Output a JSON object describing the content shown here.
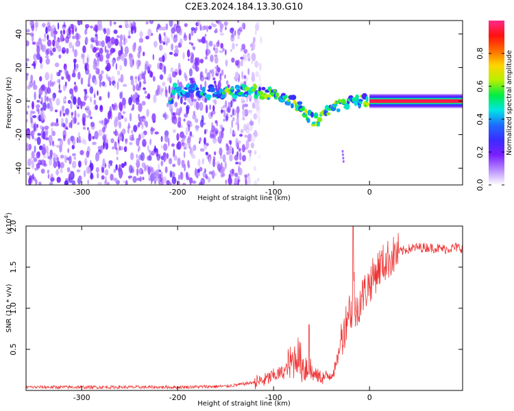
{
  "title": "C2E3.2024.184.13.30.G10",
  "chart_data": [
    {
      "type": "heatmap",
      "xlabel": "Height of straight line (km)",
      "ylabel": "Frequency (Hz)",
      "xlim": [
        -358,
        97
      ],
      "ylim": [
        -50,
        48
      ],
      "xticks": [
        -300,
        -200,
        -100,
        0
      ],
      "yticks": [
        -40,
        -20,
        0,
        20,
        40
      ],
      "colorbar": {
        "label": "Normalized spectral amplitude",
        "range": [
          0,
          1
        ],
        "ticks": [
          "0.0",
          "0.2",
          "0.4",
          "0.6",
          "0.8"
        ],
        "colormap": [
          "#ffffff",
          "#b88cff",
          "#7a1fff",
          "#3a2cff",
          "#1e6bff",
          "#00e5e5",
          "#00ee44",
          "#b6ef00",
          "#ffd500",
          "#ff6a00",
          "#ff1010",
          "#ff2a8c"
        ]
      },
      "features": {
        "noise_region_x": [
          -358,
          -140
        ],
        "signal_track": [
          {
            "x": -205,
            "y": 7
          },
          {
            "x": -180,
            "y": 6
          },
          {
            "x": -155,
            "y": 5
          },
          {
            "x": -120,
            "y": 6
          },
          {
            "x": -100,
            "y": 4
          },
          {
            "x": -80,
            "y": 0
          },
          {
            "x": -65,
            "y": -8
          },
          {
            "x": -57,
            "y": -12
          },
          {
            "x": -45,
            "y": -6
          },
          {
            "x": -30,
            "y": -2
          },
          {
            "x": -15,
            "y": 0
          },
          {
            "x": 0,
            "y": 0
          },
          {
            "x": 97,
            "y": 0
          }
        ],
        "steady_band_x": [
          0,
          97
        ],
        "steady_band_y": 0
      }
    },
    {
      "type": "line",
      "xlabel": "Height of straight line (km)",
      "ylabel": "SNR (10 * v/v)",
      "multiplier_label": "(x10",
      "multiplier_exp": "4",
      "xlim": [
        -358,
        97
      ],
      "ylim": [
        0,
        2.0
      ],
      "xticks": [
        -300,
        -200,
        -100,
        0
      ],
      "yticks": [
        0.5,
        1.0,
        1.5,
        2.0
      ],
      "ytick_labels": [
        "0.5",
        "1.0",
        "1.5",
        "2.0"
      ],
      "color": "#ee3333",
      "series": [
        {
          "x": [
            -358,
            -300,
            -250,
            -200,
            -150,
            -130,
            -110,
            -100,
            -90,
            -85,
            -80,
            -75,
            -70,
            -65,
            -60,
            -55,
            -50,
            -45,
            -40,
            -35,
            -30,
            -25,
            -22,
            -20,
            -18,
            -16,
            -15,
            -10,
            -5,
            0,
            5,
            10,
            15,
            20,
            30,
            40,
            50,
            60,
            70,
            80,
            90,
            97
          ],
          "y": [
            0.04,
            0.04,
            0.04,
            0.04,
            0.05,
            0.08,
            0.12,
            0.18,
            0.22,
            0.28,
            0.35,
            0.45,
            0.3,
            0.28,
            0.2,
            0.18,
            0.16,
            0.16,
            0.2,
            0.28,
            0.6,
            0.8,
            1.0,
            1.0,
            0.9,
            1.3,
            0.9,
            1.1,
            1.2,
            1.3,
            1.4,
            1.5,
            1.55,
            1.6,
            1.68,
            1.72,
            1.74,
            1.74,
            1.73,
            1.72,
            1.74,
            1.73
          ]
        }
      ],
      "annotations": [
        {
          "x": -60,
          "y": 0.8,
          "text": ""
        },
        {
          "x": -17,
          "y": 2.0,
          "text": ""
        }
      ]
    }
  ]
}
